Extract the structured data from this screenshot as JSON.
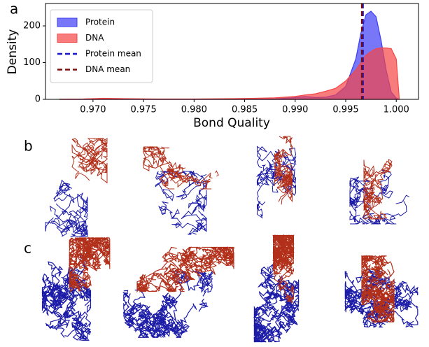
{
  "panel_labels": [
    "a",
    "b",
    "c"
  ],
  "chart_data": {
    "type": "area",
    "xlabel": "Bond Quality",
    "ylabel": "Density",
    "x": [
      0.9667,
      0.969,
      0.971,
      0.973,
      0.976,
      0.98,
      0.984,
      0.986,
      0.988,
      0.99,
      0.991,
      0.992,
      0.993,
      0.994,
      0.995,
      0.996,
      0.9965,
      0.997,
      0.9975,
      0.998,
      0.9985,
      0.999,
      0.9995,
      1.0,
      1.0003
    ],
    "series": [
      {
        "name": "Protein",
        "color": "#3d3df5",
        "values": [
          0,
          0,
          0,
          0,
          0,
          0,
          0,
          0,
          1,
          5,
          8,
          5,
          6,
          12,
          35,
          110,
          180,
          230,
          240,
          225,
          160,
          80,
          20,
          3,
          0
        ]
      },
      {
        "name": "DNA",
        "color": "#f54545",
        "values": [
          0.5,
          1,
          3,
          2,
          1,
          1,
          2,
          3,
          4,
          8,
          12,
          15,
          22,
          30,
          50,
          80,
          100,
          120,
          130,
          138,
          140,
          140,
          138,
          110,
          0
        ]
      }
    ],
    "mean_lines": [
      {
        "name": "Protein mean",
        "color": "#1515d0",
        "value": 0.9967
      },
      {
        "name": "DNA mean",
        "color": "#7a0f0f",
        "value": 0.9966
      }
    ],
    "xlim": [
      0.9653,
      1.0022
    ],
    "ylim": [
      0,
      261
    ],
    "xticks": [
      {
        "value": 0.97,
        "label": "0.970"
      },
      0.975,
      {
        "value": 0.98,
        "label": "0.980"
      },
      0.985,
      {
        "value": 0.99,
        "label": "0.990"
      },
      0.995,
      {
        "value": 1.0,
        "label": "1.000"
      }
    ],
    "yticks": [
      0,
      100,
      200
    ],
    "legend": "upper left"
  }
}
